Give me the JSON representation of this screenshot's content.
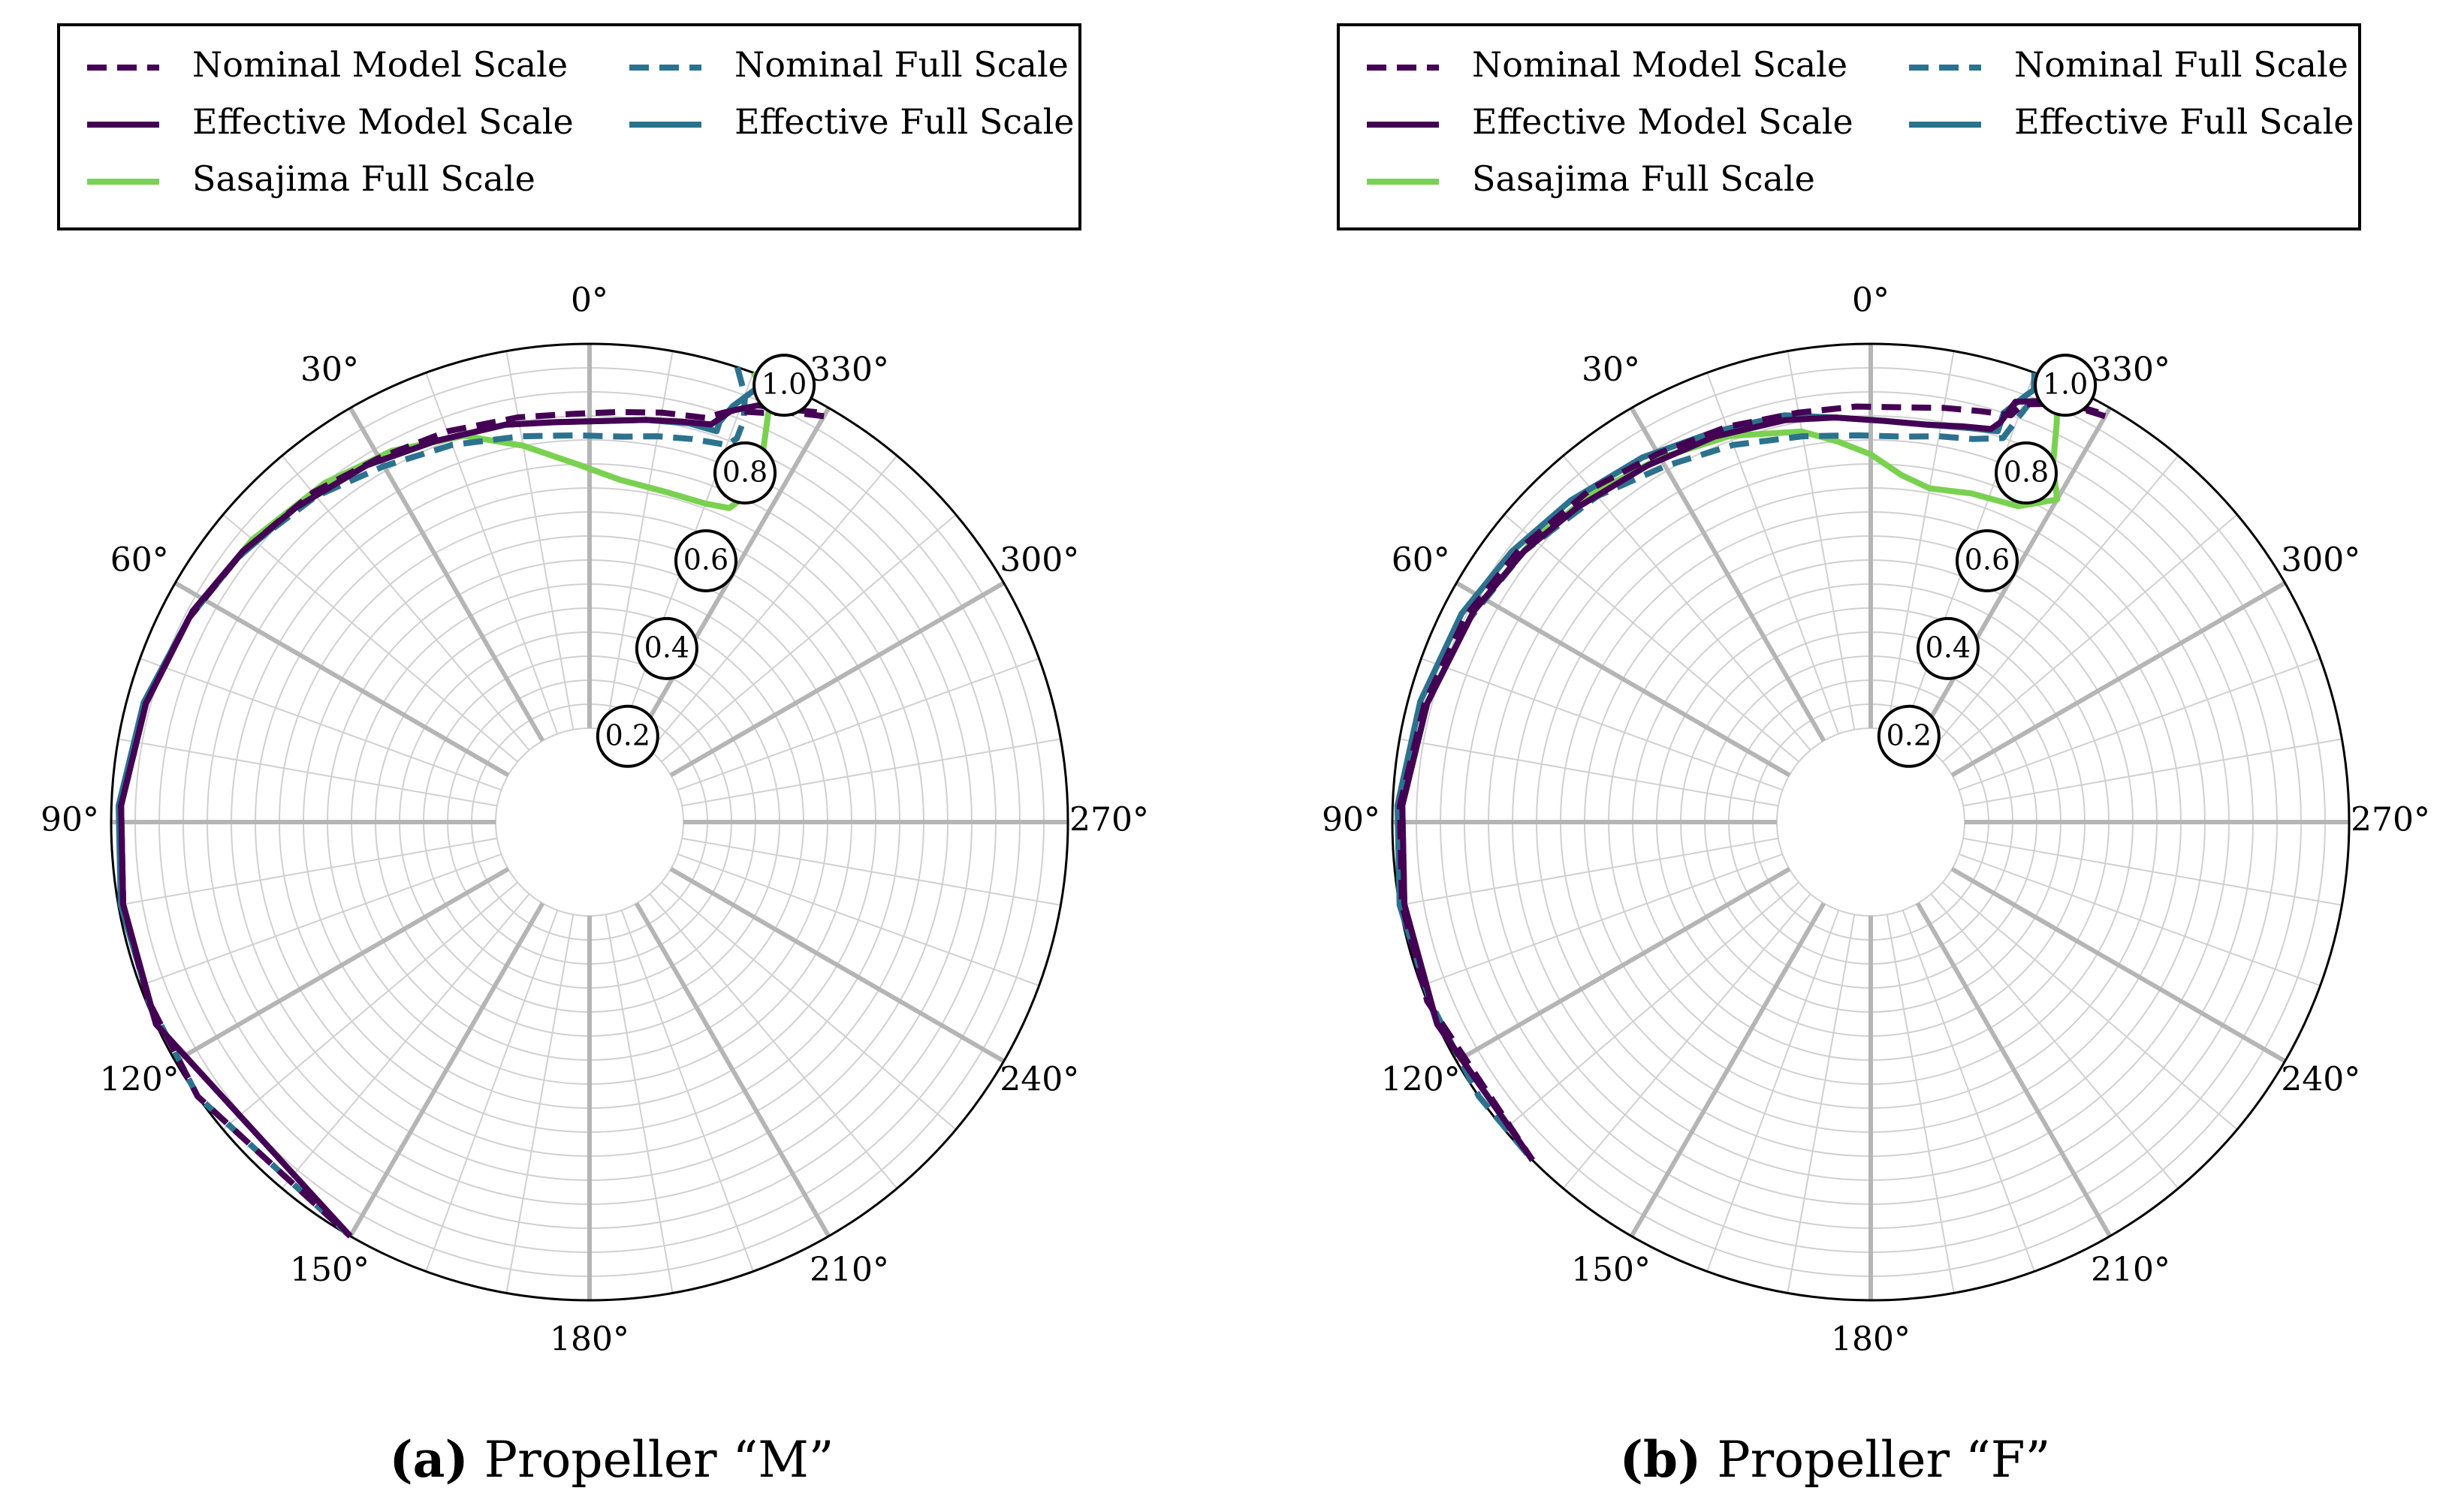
{
  "chart_data": [
    {
      "type": "polar-line",
      "panel_label": "(a)",
      "caption": "Propeller “M”",
      "radial_ticks": [
        "0.2",
        "0.4",
        "0.6",
        "0.8",
        "1.0"
      ],
      "r_range": [
        0.2,
        1.0
      ],
      "angle_ticks": [
        "0°",
        "30°",
        "60°",
        "90°",
        "120°",
        "150°",
        "180°",
        "210°",
        "240°",
        "270°",
        "300°",
        "330°"
      ],
      "angle_direction": "counterclockwise, 0 at top",
      "legend": [
        "Nominal Model Scale",
        "Nominal Full Scale",
        "Effective Model Scale",
        "Effective Full Scale",
        "Sasajima Full Scale"
      ],
      "series": [
        {
          "name": "Sasajima Full Scale",
          "color": "#7ad151",
          "style": "solid",
          "points": [
            [
              340,
              1.0
            ],
            [
              337,
              0.97
            ],
            [
              335,
              0.86
            ],
            [
              334,
              0.8
            ],
            [
              334,
              0.77
            ],
            [
              336,
              0.72
            ],
            [
              340,
              0.71
            ],
            [
              347,
              0.71
            ],
            [
              355,
              0.72
            ],
            [
              2,
              0.75
            ],
            [
              10,
              0.8
            ],
            [
              18,
              0.85
            ],
            [
              28,
              0.88
            ],
            [
              38,
              0.9
            ],
            [
              50,
              0.92
            ],
            [
              62,
              0.94
            ],
            [
              75,
              0.96
            ],
            [
              88,
              0.98
            ],
            [
              100,
              0.99
            ],
            [
              115,
              1.0
            ],
            [
              150,
              1.0
            ]
          ]
        },
        {
          "name": "Nominal Full Scale",
          "color": "#2c728e",
          "style": "dashed",
          "points": [
            [
              342,
              1.0
            ],
            [
              340,
              0.95
            ],
            [
              339,
              0.9
            ],
            [
              339,
              0.86
            ],
            [
              340,
              0.84
            ],
            [
              345,
              0.83
            ],
            [
              350,
              0.82
            ],
            [
              355,
              0.81
            ],
            [
              2,
              0.81
            ],
            [
              10,
              0.82
            ],
            [
              20,
              0.84
            ],
            [
              30,
              0.86
            ],
            [
              40,
              0.89
            ],
            [
              52,
              0.92
            ],
            [
              63,
              0.94
            ],
            [
              75,
              0.96
            ],
            [
              88,
              0.98
            ],
            [
              100,
              0.99
            ],
            [
              112,
              0.995
            ],
            [
              125,
              1.0
            ],
            [
              150,
              1.0
            ]
          ]
        },
        {
          "name": "Effective Full Scale",
          "color": "#2c728e",
          "style": "solid",
          "points": [
            [
              337,
              1.0
            ],
            [
              339,
              0.97
            ],
            [
              341,
              0.92
            ],
            [
              342,
              0.88
            ],
            [
              342,
              0.86
            ],
            [
              346,
              0.86
            ],
            [
              352,
              0.85
            ],
            [
              358,
              0.84
            ],
            [
              5,
              0.84
            ],
            [
              12,
              0.85
            ],
            [
              22,
              0.86
            ],
            [
              32,
              0.88
            ],
            [
              43,
              0.9
            ],
            [
              53,
              0.92
            ],
            [
              63,
              0.94
            ],
            [
              75,
              0.965
            ],
            [
              88,
              0.985
            ],
            [
              100,
              0.995
            ],
            [
              115,
              1.0
            ],
            [
              150,
              1.0
            ]
          ]
        },
        {
          "name": "Nominal Model Scale",
          "color": "#440154",
          "style": "dashed",
          "points": [
            [
              330,
              0.98
            ],
            [
              333,
              0.96
            ],
            [
              337,
              0.93
            ],
            [
              341,
              0.91
            ],
            [
              342,
              0.9
            ],
            [
              344,
              0.88
            ],
            [
              350,
              0.87
            ],
            [
              356,
              0.86
            ],
            [
              2,
              0.855
            ],
            [
              10,
              0.86
            ],
            [
              20,
              0.87
            ],
            [
              30,
              0.88
            ],
            [
              40,
              0.9
            ],
            [
              52,
              0.92
            ],
            [
              63,
              0.94
            ],
            [
              75,
              0.96
            ],
            [
              88,
              0.98
            ],
            [
              100,
              0.99
            ],
            [
              112,
              0.995
            ],
            [
              125,
              1.0
            ],
            [
              150,
              1.0
            ]
          ]
        },
        {
          "name": "Effective Model Scale",
          "color": "#440154",
          "style": "solid",
          "points": [
            [
              331,
              0.98
            ],
            [
              334,
              0.96
            ],
            [
              338,
              0.94
            ],
            [
              341,
              0.91
            ],
            [
              342,
              0.89
            ],
            [
              343,
              0.87
            ],
            [
              347,
              0.86
            ],
            [
              352,
              0.85
            ],
            [
              358,
              0.84
            ],
            [
              5,
              0.84
            ],
            [
              12,
              0.85
            ],
            [
              22,
              0.86
            ],
            [
              32,
              0.88
            ],
            [
              43,
              0.9
            ],
            [
              52,
              0.92
            ],
            [
              62,
              0.94
            ],
            [
              75,
              0.96
            ],
            [
              88,
              0.98
            ],
            [
              100,
              0.99
            ],
            [
              115,
              1.0
            ],
            [
              150,
              1.0
            ]
          ]
        }
      ]
    },
    {
      "type": "polar-line",
      "panel_label": "(b)",
      "caption": "Propeller “F”",
      "radial_ticks": [
        "0.2",
        "0.4",
        "0.6",
        "0.8",
        "1.0"
      ],
      "r_range": [
        0.2,
        1.0
      ],
      "angle_ticks": [
        "0°",
        "30°",
        "60°",
        "90°",
        "120°",
        "150°",
        "180°",
        "210°",
        "240°",
        "270°",
        "300°",
        "330°"
      ],
      "angle_direction": "counterclockwise, 0 at top",
      "legend": [
        "Nominal Model Scale",
        "Nominal Full Scale",
        "Effective Model Scale",
        "Effective Full Scale",
        "Sasajima Full Scale"
      ],
      "series": [
        {
          "name": "Sasajima Full Scale",
          "color": "#7ad151",
          "style": "solid",
          "points": [
            [
              337,
              1.0
            ],
            [
              335,
              0.92
            ],
            [
              333,
              0.84
            ],
            [
              330,
              0.78
            ],
            [
              335,
              0.73
            ],
            [
              343,
              0.72
            ],
            [
              350,
              0.71
            ],
            [
              355,
              0.73
            ],
            [
              0,
              0.77
            ],
            [
              5,
              0.8
            ],
            [
              10,
              0.83
            ],
            [
              20,
              0.86
            ],
            [
              30,
              0.88
            ],
            [
              40,
              0.9
            ],
            [
              50,
              0.92
            ],
            [
              62,
              0.94
            ],
            [
              75,
              0.96
            ],
            [
              88,
              0.98
            ],
            [
              100,
              0.99
            ],
            [
              115,
              1.0
            ],
            [
              135,
              1.0
            ]
          ]
        },
        {
          "name": "Nominal Full Scale",
          "color": "#2c728e",
          "style": "dashed",
          "points": [
            [
              340,
              1.0
            ],
            [
              339,
              0.95
            ],
            [
              340,
              0.9
            ],
            [
              341,
              0.85
            ],
            [
              345,
              0.83
            ],
            [
              350,
              0.82
            ],
            [
              355,
              0.81
            ],
            [
              2,
              0.81
            ],
            [
              10,
              0.82
            ],
            [
              20,
              0.84
            ],
            [
              30,
              0.86
            ],
            [
              40,
              0.89
            ],
            [
              52,
              0.92
            ],
            [
              63,
              0.94
            ],
            [
              75,
              0.96
            ],
            [
              88,
              0.98
            ],
            [
              100,
              0.99
            ],
            [
              112,
              0.995
            ],
            [
              125,
              1.0
            ],
            [
              135,
              1.0
            ]
          ]
        },
        {
          "name": "Effective Full Scale",
          "color": "#2c728e",
          "style": "solid",
          "points": [
            [
              338,
              1.0
            ],
            [
              340,
              0.95
            ],
            [
              342,
              0.9
            ],
            [
              342,
              0.86
            ],
            [
              346,
              0.85
            ],
            [
              352,
              0.84
            ],
            [
              358,
              0.84
            ],
            [
              5,
              0.85
            ],
            [
              12,
              0.87
            ],
            [
              22,
              0.88
            ],
            [
              32,
              0.9
            ],
            [
              43,
              0.92
            ],
            [
              53,
              0.94
            ],
            [
              63,
              0.96
            ],
            [
              75,
              0.975
            ],
            [
              88,
              0.99
            ],
            [
              100,
              1.0
            ],
            [
              115,
              1.0
            ],
            [
              135,
              1.0
            ]
          ]
        },
        {
          "name": "Nominal Model Scale",
          "color": "#440154",
          "style": "dashed",
          "points": [
            [
              330,
              0.98
            ],
            [
              333,
              0.97
            ],
            [
              337,
              0.95
            ],
            [
              340,
              0.93
            ],
            [
              341,
              0.9
            ],
            [
              345,
              0.89
            ],
            [
              350,
              0.88
            ],
            [
              356,
              0.87
            ],
            [
              2,
              0.87
            ],
            [
              10,
              0.87
            ],
            [
              20,
              0.88
            ],
            [
              30,
              0.89
            ],
            [
              40,
              0.91
            ],
            [
              52,
              0.93
            ],
            [
              63,
              0.95
            ],
            [
              75,
              0.965
            ],
            [
              88,
              0.985
            ],
            [
              100,
              0.995
            ],
            [
              112,
              1.0
            ],
            [
              135,
              1.0
            ]
          ]
        },
        {
          "name": "Effective Model Scale",
          "color": "#440154",
          "style": "solid",
          "points": [
            [
              331,
              0.98
            ],
            [
              334,
              0.97
            ],
            [
              338,
              0.95
            ],
            [
              341,
              0.93
            ],
            [
              342,
              0.88
            ],
            [
              343,
              0.86
            ],
            [
              347,
              0.85
            ],
            [
              352,
              0.84
            ],
            [
              358,
              0.84
            ],
            [
              5,
              0.85
            ],
            [
              12,
              0.86
            ],
            [
              22,
              0.87
            ],
            [
              32,
              0.88
            ],
            [
              43,
              0.9
            ],
            [
              52,
              0.92
            ],
            [
              62,
              0.94
            ],
            [
              75,
              0.96
            ],
            [
              88,
              0.98
            ],
            [
              100,
              0.99
            ],
            [
              115,
              1.0
            ],
            [
              135,
              1.0
            ]
          ]
        }
      ]
    }
  ]
}
